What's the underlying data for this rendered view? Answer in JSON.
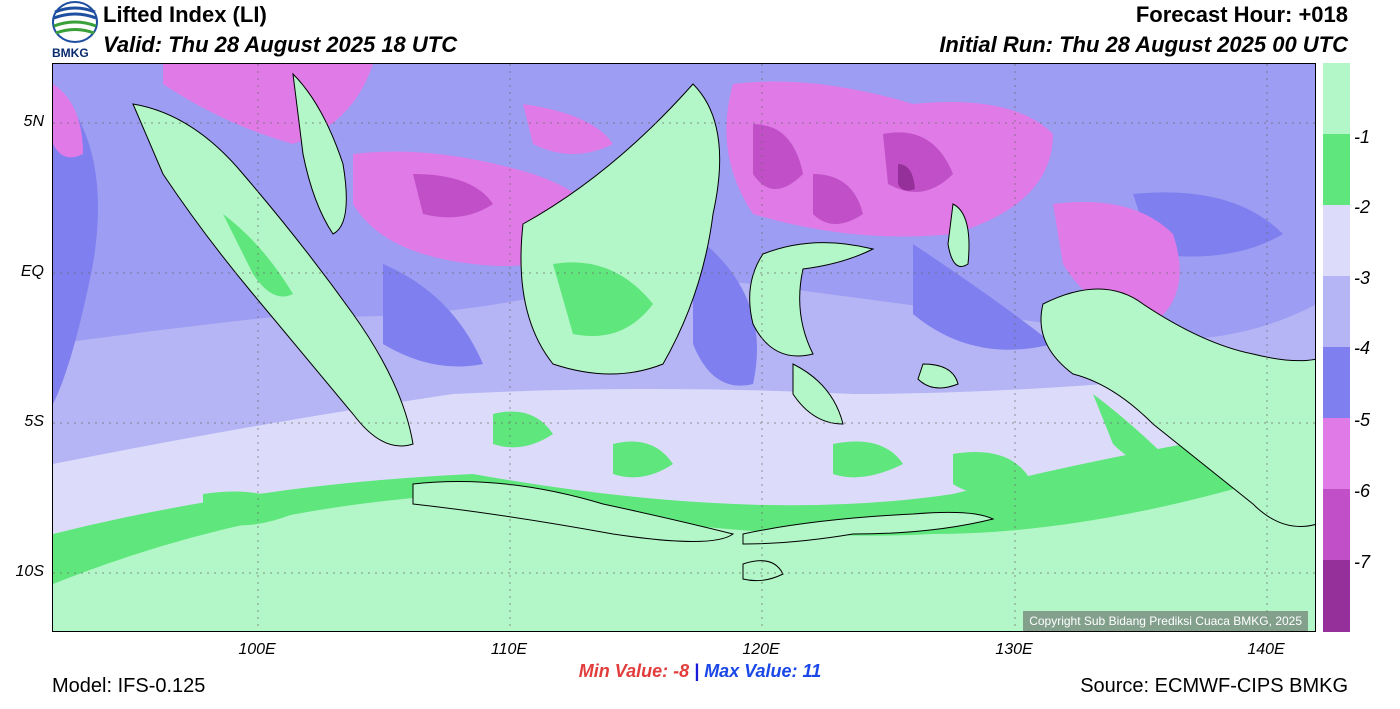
{
  "header": {
    "title": "Lifted Index (LI)",
    "valid": "Valid: Thu 28 August 2025 18 UTC",
    "forecast_hour": "Forecast Hour: +018",
    "initial_run": "Initial Run: Thu 28 August 2025 00 UTC",
    "logo_text": "BMKG"
  },
  "axes": {
    "lat_labels": [
      "5N",
      "EQ",
      "5S",
      "10S"
    ],
    "lon_labels": [
      "100E",
      "110E",
      "120E",
      "130E",
      "140E"
    ]
  },
  "legend": {
    "labels": [
      "-1",
      "-2",
      "-3",
      "-4",
      "-5",
      "-6",
      "-7"
    ],
    "colors": [
      "#b3f7c8",
      "#5fe67c",
      "#dcdcfa",
      "#b5b5f5",
      "#7f7ff0",
      "#e07ae6",
      "#c14fc8",
      "#95309a"
    ]
  },
  "footer": {
    "min_label": "Min Value:  -8",
    "separator": "|",
    "max_label": "Max Value:  11",
    "model": "Model: IFS-0.125",
    "source": "Source: ECMWF-CIPS BMKG",
    "copyright": "Copyright Sub Bidang Prediksi Cuaca BMKG, 2025"
  }
}
